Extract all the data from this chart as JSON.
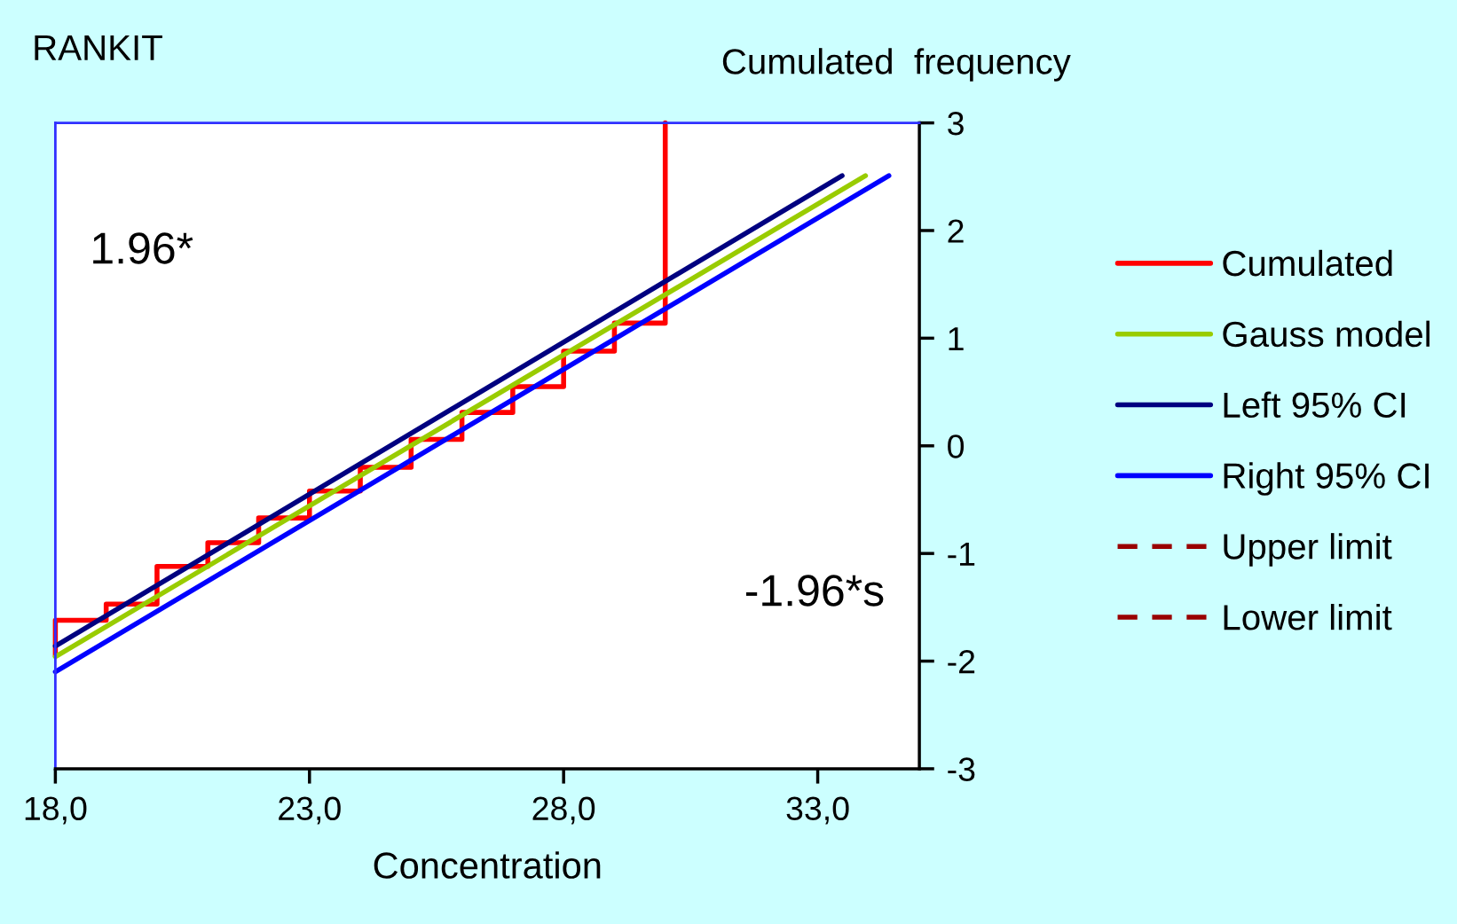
{
  "chart_data": {
    "type": "line",
    "xlabel": "Concentration",
    "ylabel": "RANKIT",
    "y2label": "Cumulated  frequency",
    "xlim": [
      18,
      35
    ],
    "xticks": [
      {
        "value": 18,
        "label": "18,0"
      },
      {
        "value": 23,
        "label": "23,0"
      },
      {
        "value": 28,
        "label": "28,0"
      },
      {
        "value": 33,
        "label": "33,0"
      }
    ],
    "ylim": [
      -3,
      3
    ],
    "yticks": [
      -3,
      -2,
      -1,
      0,
      1,
      2,
      3
    ],
    "grid": false,
    "legend": "right",
    "tick_labels": "xy",
    "annotations": [
      "1.96*",
      "-1.96*s"
    ],
    "series": [
      {
        "name": "Cumulated",
        "type": "step",
        "color": "#ff0000",
        "x": [
          18,
          18,
          19,
          20,
          21,
          22,
          23,
          24,
          25,
          26,
          27,
          28,
          29,
          30
        ],
        "values": [
          -1.95,
          -1.62,
          -1.47,
          -1.12,
          -0.9,
          -0.67,
          -0.42,
          -0.2,
          0.06,
          0.31,
          0.55,
          0.88,
          1.14,
          3
        ]
      },
      {
        "name": "Gauss model",
        "color": "#99cc00",
        "x": [
          18,
          33.94
        ],
        "values": [
          -1.96,
          2.51
        ]
      },
      {
        "name": "Left 95% CI",
        "color": "#000080",
        "x": [
          18,
          33.48
        ],
        "values": [
          -1.86,
          2.51
        ]
      },
      {
        "name": "Right 95% CI",
        "color": "#0000ff",
        "x": [
          18,
          34.4
        ],
        "values": [
          -2.1,
          2.51
        ]
      },
      {
        "name": "Upper limit",
        "color": "#990000",
        "line_style": "dashed"
      },
      {
        "name": "Lower limit",
        "color": "#990000",
        "line_style": "dashed"
      }
    ]
  }
}
